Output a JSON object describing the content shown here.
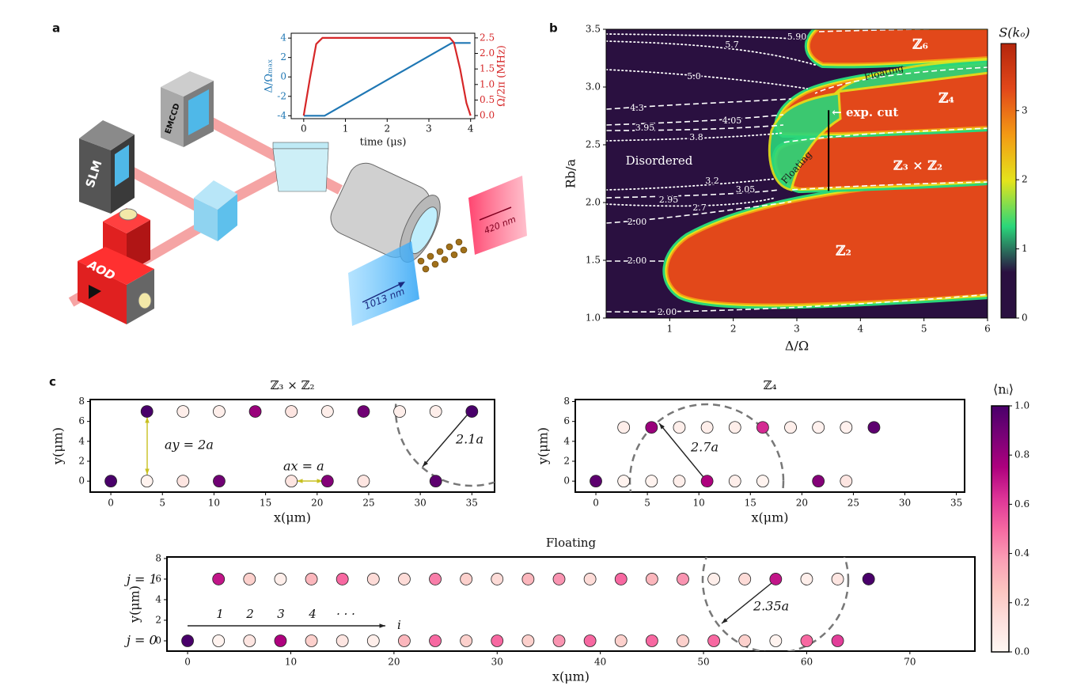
{
  "panel_labels": [
    "a",
    "b",
    "c"
  ],
  "schematic": {
    "slm": "SLM",
    "emccd": "EMCCD",
    "aod": "AOD",
    "beam_1013": "1013 nm",
    "beam_420": "420 nm"
  },
  "chart_data": [
    {
      "type": "line",
      "xlabel": "time (μs)",
      "ylabel": "Δ/Ωₘₐₓ",
      "y2label": "Ω/2π (MHz)",
      "xlim": [
        -0.3,
        4.1
      ],
      "xticks": [
        0,
        1,
        2,
        3,
        4
      ],
      "ylim": [
        -4.3,
        4.5
      ],
      "yticks": [
        -4,
        -2,
        0,
        2,
        4
      ],
      "y2lim": [
        -0.1,
        2.65
      ],
      "y2ticks": [
        {
          "value": 0,
          "label": "0.0"
        },
        0.5,
        {
          "value": 1,
          "label": "1.0"
        },
        1.5,
        {
          "value": 2,
          "label": "2.0"
        },
        2.5
      ],
      "series": [
        {
          "color": "#1f77b4",
          "x": [
            0,
            0.5,
            3.55,
            4
          ],
          "values": [
            -4,
            -4,
            3.5,
            3.5
          ]
        },
        {
          "color": "#d62728",
          "axis": "y2",
          "x": [
            0,
            0.15,
            0.3,
            0.45,
            3.5,
            3.6,
            3.75,
            3.9,
            4
          ],
          "values": [
            0,
            1.2,
            2.3,
            2.5,
            2.5,
            2.35,
            1.5,
            0.4,
            0
          ]
        }
      ]
    },
    {
      "type": "heatmap",
      "xlabel": "Δ/Ω",
      "ylabel": "Rb/a",
      "colorbar_label": "S(kₒ)",
      "xlim": [
        0,
        6
      ],
      "xticks": [
        1,
        2,
        3,
        4,
        5,
        6
      ],
      "ylim": [
        1,
        3.5
      ],
      "yticks": [
        {
          "value": 1,
          "label": "1.0"
        },
        1.5,
        {
          "value": 2,
          "label": "2.0"
        },
        2.5,
        {
          "value": 3,
          "label": "3.0"
        },
        3.5
      ],
      "clim": [
        0,
        3.97
      ],
      "cticks": [
        0,
        1,
        2,
        3
      ],
      "colormap": [
        "#2a1040",
        "#2a1040",
        "#2ad67a",
        "#e4e41c",
        "#f39a14",
        "#e2481a",
        "#b4260c"
      ],
      "region_labels": [
        "ℤ₆",
        "ℤ₄",
        "ℤ₃ × ℤ₂",
        "ℤ₂",
        "Floating",
        "Floating",
        "Disordered"
      ],
      "contour_labels": [
        "5.90",
        "5.7",
        "5.0",
        "4.3",
        "4.05",
        "3.95",
        "3.8",
        "3.2",
        "3.05",
        "2.95",
        "2.7",
        "2.00",
        "2.00",
        "2.00"
      ],
      "annotation": "← exp. cut",
      "cut": {
        "x": 3.5,
        "y": [
          2.1,
          2.8
        ]
      }
    },
    {
      "type": "scatter",
      "title": "ℤ₃ × ℤ₂",
      "xlabel": "x(μm)",
      "ylabel": "y(μm)",
      "xlim": [
        -2,
        37.2
      ],
      "xticks": [
        0,
        5,
        10,
        15,
        20,
        25,
        30,
        35
      ],
      "ylim": [
        -1.1,
        8.2
      ],
      "yticks": [
        0,
        2,
        4,
        6,
        8
      ],
      "x": [
        3.5,
        7,
        10.5,
        14,
        17.5,
        21,
        24.5,
        28,
        31.5,
        35,
        0,
        3.5,
        7,
        10.5,
        17.5,
        21,
        24.5,
        31.5
      ],
      "y": [
        7,
        7,
        7,
        7,
        7,
        7,
        7,
        7,
        7,
        7,
        0,
        0,
        0,
        0,
        0,
        0,
        0,
        0
      ],
      "values": [
        1,
        0.05,
        0.05,
        0.8,
        0.1,
        0.05,
        0.9,
        0.05,
        0.05,
        1,
        1,
        0.02,
        0.1,
        0.9,
        0.1,
        0.85,
        0.1,
        0.95
      ],
      "annotations": [
        "ay = 2a",
        "ax = a",
        "2.1a"
      ]
    },
    {
      "type": "scatter",
      "title": "ℤ₄",
      "xlabel": "x(μm)",
      "ylabel": "y(μm)",
      "xlim": [
        -2,
        35.8
      ],
      "xticks": [
        0,
        5,
        10,
        15,
        20,
        25,
        30,
        35
      ],
      "ylim": [
        -1.1,
        8.2
      ],
      "yticks": [
        0,
        2,
        4,
        6,
        8
      ],
      "x": [
        2.7,
        5.4,
        8.1,
        10.8,
        13.5,
        16.2,
        18.9,
        21.6,
        24.3,
        27,
        0,
        2.7,
        5.4,
        8.1,
        10.8,
        13.5,
        16.2,
        21.6,
        24.3
      ],
      "y": [
        5.4,
        5.4,
        5.4,
        5.4,
        5.4,
        5.4,
        5.4,
        5.4,
        5.4,
        5.4,
        0,
        0,
        0,
        0,
        0,
        0,
        0,
        0,
        0
      ],
      "values": [
        0.05,
        0.8,
        0.05,
        0.05,
        0.05,
        0.65,
        0.05,
        0.03,
        0.03,
        0.95,
        0.95,
        0.02,
        0.02,
        0.05,
        0.75,
        0.05,
        0.02,
        0.85,
        0.1
      ],
      "annotations": [
        "2.7a"
      ]
    },
    {
      "type": "scatter",
      "title": "Floating",
      "xlabel": "x(μm)",
      "ylabel": "y(μm)",
      "xlim": [
        -2,
        76.3
      ],
      "xticks": [
        0,
        10,
        20,
        30,
        40,
        50,
        60,
        70
      ],
      "ylim": [
        -1,
        8.15
      ],
      "yticks": [
        0,
        2,
        4,
        6,
        8
      ],
      "x": [
        3,
        6,
        9,
        12,
        15,
        18,
        21,
        24,
        27,
        30,
        33,
        36,
        39,
        42,
        45,
        48,
        51,
        54,
        57,
        60,
        63,
        66,
        0,
        3,
        6,
        9,
        12,
        15,
        18,
        21,
        24,
        27,
        30,
        33,
        36,
        39,
        42,
        45,
        48,
        51,
        54,
        57,
        60,
        63
      ],
      "y": [
        6,
        6,
        6,
        6,
        6,
        6,
        6,
        6,
        6,
        6,
        6,
        6,
        6,
        6,
        6,
        6,
        6,
        6,
        6,
        6,
        6,
        6,
        0,
        0,
        0,
        0,
        0,
        0,
        0,
        0,
        0,
        0,
        0,
        0,
        0,
        0,
        0,
        0,
        0,
        0,
        0,
        0,
        0,
        0
      ],
      "values": [
        0.7,
        0.2,
        0.05,
        0.3,
        0.5,
        0.15,
        0.15,
        0.45,
        0.2,
        0.15,
        0.3,
        0.4,
        0.15,
        0.5,
        0.3,
        0.4,
        0.05,
        0.15,
        0.7,
        0.05,
        0.1,
        1.0,
        1.0,
        0.02,
        0.1,
        0.75,
        0.2,
        0.1,
        0.05,
        0.3,
        0.5,
        0.2,
        0.5,
        0.2,
        0.4,
        0.5,
        0.2,
        0.5,
        0.2,
        0.5,
        0.2,
        0.02,
        0.5,
        0.6
      ],
      "annotations": [
        "2.35a",
        "j = 1",
        "j = 0",
        "1",
        "2",
        "3",
        "4",
        "· · ·",
        "i"
      ]
    }
  ],
  "ni_colorbar": {
    "label": "⟨nᵢ⟩",
    "lim": [
      0,
      1
    ],
    "ticks": [
      {
        "value": 0,
        "label": "0.0"
      },
      0.2,
      0.4,
      0.6,
      0.8,
      {
        "value": 1,
        "label": "1.0"
      }
    ],
    "colormap": [
      "#fff7f3",
      "#fde0dd",
      "#fcc5c0",
      "#fa9fb5",
      "#f768a1",
      "#dd3497",
      "#ae017e",
      "#7a0177",
      "#49006a"
    ]
  }
}
